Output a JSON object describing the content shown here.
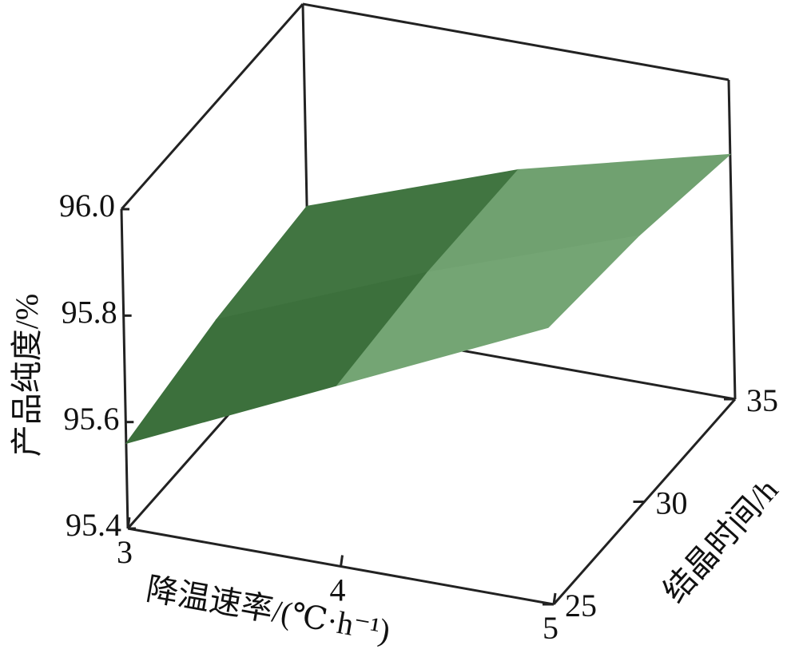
{
  "chart_data": {
    "type": "surface3d",
    "xlabel": "降温速率/(℃·h⁻¹)",
    "ylabel": "结晶时间/h",
    "zlabel": "产品纯度/%",
    "x": [
      3,
      4,
      5
    ],
    "y": [
      25,
      30,
      35
    ],
    "z": [
      [
        95.56,
        95.74,
        95.92
      ],
      [
        95.6,
        95.76,
        95.9
      ],
      [
        95.62,
        95.76,
        95.86
      ]
    ],
    "xlim": [
      3,
      5
    ],
    "ylim": [
      25,
      35
    ],
    "zlim": [
      95.4,
      96.0
    ],
    "xticks": [
      3,
      4,
      5
    ],
    "yticks": [
      25,
      30,
      35
    ],
    "zticks": [
      95.4,
      95.6,
      95.8,
      {
        "value": 96.0,
        "label": "96.0"
      }
    ],
    "colors": [
      "#1a4f1a",
      "#c9f7c9"
    ]
  }
}
